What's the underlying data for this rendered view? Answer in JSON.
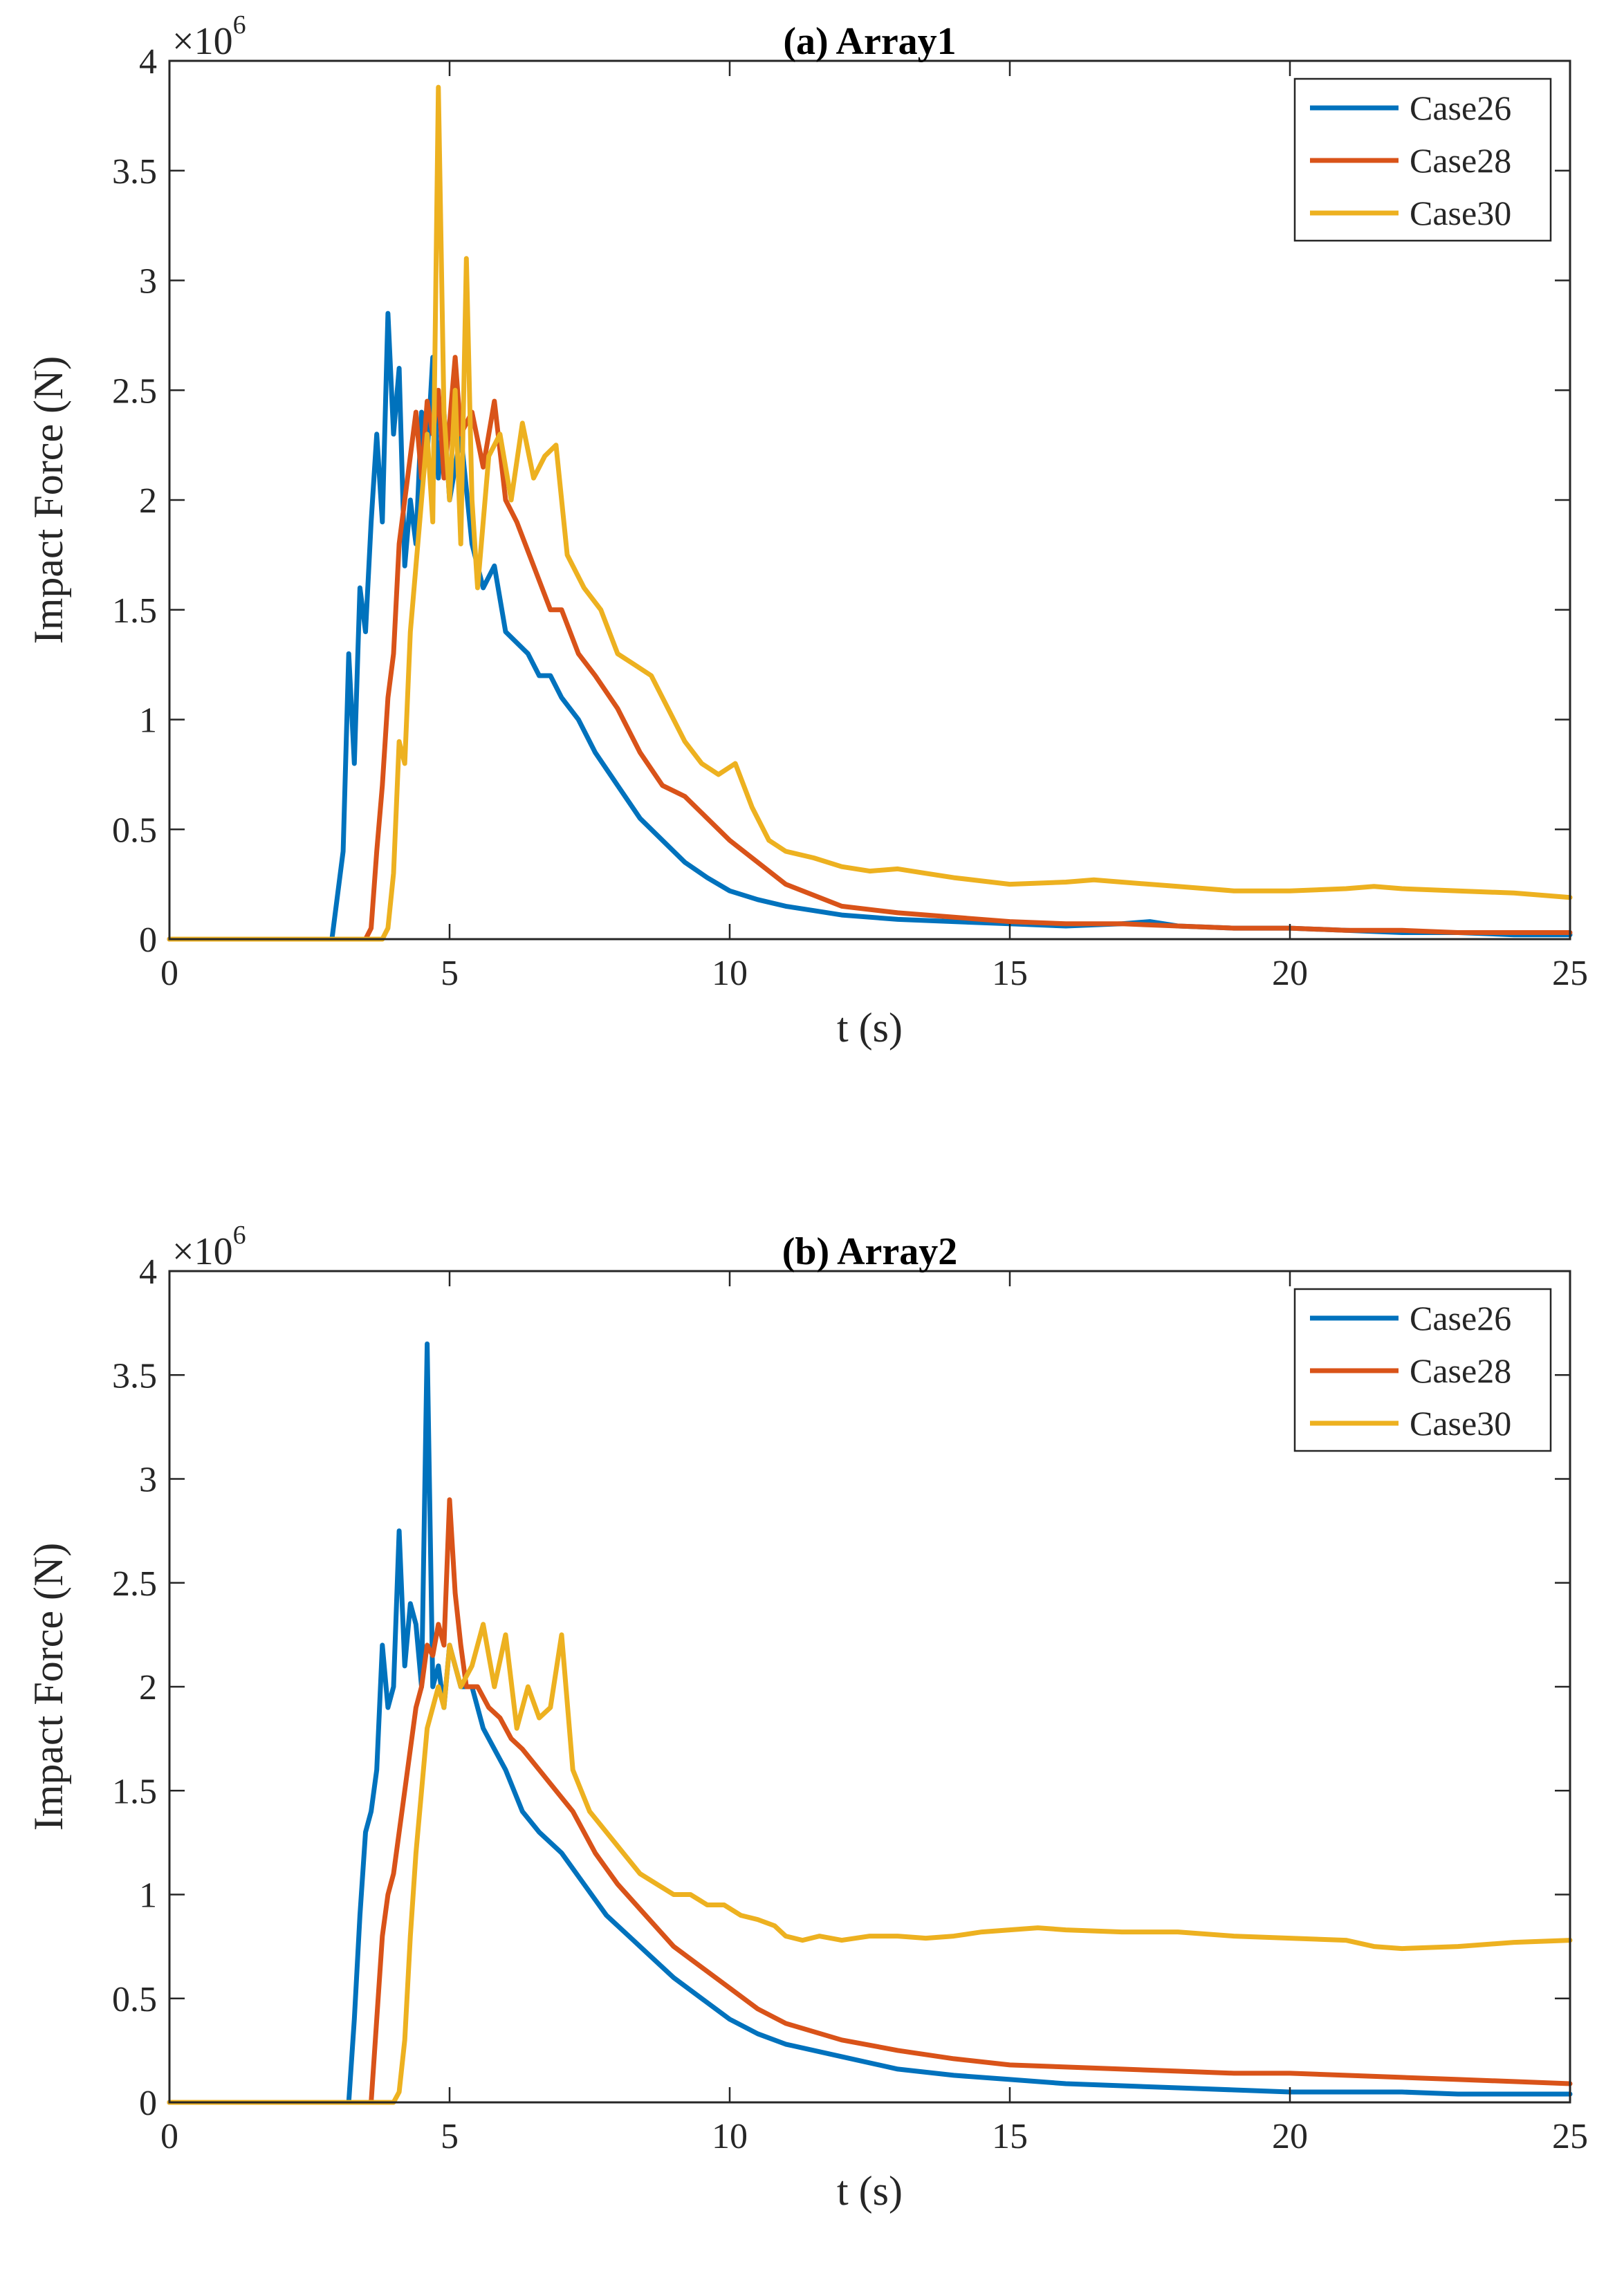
{
  "chart_data": [
    {
      "type": "line",
      "title": "(a) Array1",
      "xlabel": "t (s)",
      "ylabel": "Impact Force (N)",
      "exponent_base": "×10",
      "exponent_power": "6",
      "xlim": [
        0,
        25
      ],
      "ylim": [
        0,
        4
      ],
      "xticks": [
        0,
        5,
        10,
        15,
        20,
        25
      ],
      "yticks": [
        0,
        0.5,
        1,
        1.5,
        2,
        2.5,
        3,
        3.5,
        4
      ],
      "xtick_labels": [
        "0",
        "5",
        "10",
        "15",
        "20",
        "25"
      ],
      "ytick_labels": [
        "0",
        "0.5",
        "1",
        "1.5",
        "2",
        "2.5",
        "3",
        "3.5",
        "4"
      ],
      "grid": false,
      "legend_position": "top-right",
      "series": [
        {
          "name": "Case26",
          "color": "#0072BD",
          "x": [
            0,
            2.9,
            3.0,
            3.1,
            3.2,
            3.3,
            3.4,
            3.5,
            3.6,
            3.7,
            3.8,
            3.9,
            4.0,
            4.1,
            4.2,
            4.3,
            4.4,
            4.5,
            4.6,
            4.7,
            4.8,
            4.9,
            5.0,
            5.2,
            5.4,
            5.6,
            5.8,
            6.0,
            6.2,
            6.4,
            6.6,
            6.8,
            7.0,
            7.3,
            7.6,
            8.0,
            8.4,
            8.8,
            9.2,
            9.6,
            10.0,
            10.5,
            11.0,
            11.5,
            12.0,
            13.0,
            14.0,
            15.0,
            16.0,
            17.0,
            17.5,
            18.0,
            19.0,
            20.0,
            21.0,
            22.0,
            23.0,
            24.0,
            25.0
          ],
          "y": [
            0,
            0,
            0.2,
            0.4,
            1.3,
            0.8,
            1.6,
            1.4,
            1.9,
            2.3,
            1.9,
            2.85,
            2.3,
            2.6,
            1.7,
            2.0,
            1.8,
            2.4,
            2.2,
            2.65,
            2.1,
            2.4,
            2.0,
            2.3,
            1.8,
            1.6,
            1.7,
            1.4,
            1.35,
            1.3,
            1.2,
            1.2,
            1.1,
            1.0,
            0.85,
            0.7,
            0.55,
            0.45,
            0.35,
            0.28,
            0.22,
            0.18,
            0.15,
            0.13,
            0.11,
            0.09,
            0.08,
            0.07,
            0.06,
            0.07,
            0.08,
            0.06,
            0.05,
            0.05,
            0.04,
            0.03,
            0.03,
            0.02,
            0.02
          ]
        },
        {
          "name": "Case28",
          "color": "#D95319",
          "x": [
            0,
            3.5,
            3.6,
            3.7,
            3.8,
            3.9,
            4.0,
            4.1,
            4.2,
            4.3,
            4.4,
            4.5,
            4.6,
            4.7,
            4.8,
            4.9,
            5.0,
            5.1,
            5.2,
            5.4,
            5.6,
            5.8,
            6.0,
            6.2,
            6.5,
            6.8,
            7.0,
            7.3,
            7.6,
            8.0,
            8.4,
            8.8,
            9.2,
            9.6,
            10.0,
            10.5,
            11.0,
            11.5,
            12.0,
            13.0,
            14.0,
            15.0,
            16.0,
            17.0,
            18.0,
            19.0,
            20.0,
            21.0,
            22.0,
            23.0,
            24.0,
            25.0
          ],
          "y": [
            0,
            0,
            0.05,
            0.4,
            0.7,
            1.1,
            1.3,
            1.8,
            2.0,
            2.2,
            2.4,
            2.1,
            2.45,
            2.3,
            2.5,
            2.1,
            2.35,
            2.65,
            2.3,
            2.4,
            2.15,
            2.45,
            2.0,
            1.9,
            1.7,
            1.5,
            1.5,
            1.3,
            1.2,
            1.05,
            0.85,
            0.7,
            0.65,
            0.55,
            0.45,
            0.35,
            0.25,
            0.2,
            0.15,
            0.12,
            0.1,
            0.08,
            0.07,
            0.07,
            0.06,
            0.05,
            0.05,
            0.04,
            0.04,
            0.03,
            0.03,
            0.03
          ]
        },
        {
          "name": "Case30",
          "color": "#EDB120",
          "x": [
            0,
            3.8,
            3.9,
            4.0,
            4.1,
            4.2,
            4.3,
            4.4,
            4.5,
            4.6,
            4.7,
            4.8,
            4.9,
            5.0,
            5.1,
            5.2,
            5.3,
            5.4,
            5.5,
            5.7,
            5.9,
            6.1,
            6.3,
            6.5,
            6.7,
            6.9,
            7.1,
            7.4,
            7.7,
            8.0,
            8.3,
            8.6,
            8.9,
            9.2,
            9.5,
            9.8,
            10.1,
            10.4,
            10.7,
            11.0,
            11.5,
            12.0,
            12.5,
            13.0,
            13.5,
            14.0,
            15.0,
            16.0,
            16.5,
            17.0,
            18.0,
            19.0,
            20.0,
            21.0,
            21.5,
            22.0,
            23.0,
            24.0,
            25.0
          ],
          "y": [
            0,
            0,
            0.05,
            0.3,
            0.9,
            0.8,
            1.4,
            1.7,
            2.0,
            2.3,
            1.9,
            3.88,
            2.4,
            2.0,
            2.5,
            1.8,
            3.1,
            2.0,
            1.6,
            2.2,
            2.3,
            2.0,
            2.35,
            2.1,
            2.2,
            2.25,
            1.75,
            1.6,
            1.5,
            1.3,
            1.25,
            1.2,
            1.05,
            0.9,
            0.8,
            0.75,
            0.8,
            0.6,
            0.45,
            0.4,
            0.37,
            0.33,
            0.31,
            0.32,
            0.3,
            0.28,
            0.25,
            0.26,
            0.27,
            0.26,
            0.24,
            0.22,
            0.22,
            0.23,
            0.24,
            0.23,
            0.22,
            0.21,
            0.19
          ]
        }
      ]
    },
    {
      "type": "line",
      "title": "(b) Array2",
      "xlabel": "t (s)",
      "ylabel": "Impact Force (N)",
      "exponent_base": "×10",
      "exponent_power": "6",
      "xlim": [
        0,
        25
      ],
      "ylim": [
        0,
        4
      ],
      "xticks": [
        0,
        5,
        10,
        15,
        20,
        25
      ],
      "yticks": [
        0,
        0.5,
        1,
        1.5,
        2,
        2.5,
        3,
        3.5,
        4
      ],
      "xtick_labels": [
        "0",
        "5",
        "10",
        "15",
        "20",
        "25"
      ],
      "ytick_labels": [
        "0",
        "0.5",
        "1",
        "1.5",
        "2",
        "2.5",
        "3",
        "3.5",
        "4"
      ],
      "grid": false,
      "legend_position": "top-right",
      "series": [
        {
          "name": "Case26",
          "color": "#0072BD",
          "x": [
            0,
            3.2,
            3.3,
            3.4,
            3.5,
            3.6,
            3.7,
            3.8,
            3.9,
            4.0,
            4.1,
            4.2,
            4.3,
            4.4,
            4.5,
            4.6,
            4.7,
            4.8,
            4.9,
            5.0,
            5.2,
            5.4,
            5.6,
            5.8,
            6.0,
            6.3,
            6.6,
            7.0,
            7.4,
            7.8,
            8.2,
            8.6,
            9.0,
            9.5,
            10.0,
            10.5,
            11.0,
            12.0,
            13.0,
            14.0,
            15.0,
            16.0,
            17.0,
            18.0,
            19.0,
            20.0,
            21.0,
            22.0,
            23.0,
            24.0,
            25.0
          ],
          "y": [
            0,
            0,
            0.4,
            0.9,
            1.3,
            1.4,
            1.6,
            2.2,
            1.9,
            2.0,
            2.75,
            2.1,
            2.4,
            2.3,
            2.0,
            3.65,
            2.0,
            2.1,
            1.9,
            2.2,
            2.0,
            2.0,
            1.8,
            1.7,
            1.6,
            1.4,
            1.3,
            1.2,
            1.05,
            0.9,
            0.8,
            0.7,
            0.6,
            0.5,
            0.4,
            0.33,
            0.28,
            0.22,
            0.16,
            0.13,
            0.11,
            0.09,
            0.08,
            0.07,
            0.06,
            0.05,
            0.05,
            0.05,
            0.04,
            0.04,
            0.04
          ]
        },
        {
          "name": "Case28",
          "color": "#D95319",
          "x": [
            0,
            3.6,
            3.7,
            3.8,
            3.9,
            4.0,
            4.1,
            4.2,
            4.3,
            4.4,
            4.5,
            4.6,
            4.7,
            4.8,
            4.9,
            5.0,
            5.1,
            5.2,
            5.3,
            5.5,
            5.7,
            5.9,
            6.1,
            6.3,
            6.6,
            6.9,
            7.2,
            7.6,
            8.0,
            8.5,
            9.0,
            9.5,
            10.0,
            10.5,
            11.0,
            12.0,
            13.0,
            14.0,
            15.0,
            16.0,
            17.0,
            18.0,
            19.0,
            20.0,
            21.0,
            22.0,
            23.0,
            24.0,
            25.0
          ],
          "y": [
            0,
            0,
            0.4,
            0.8,
            1.0,
            1.1,
            1.3,
            1.5,
            1.7,
            1.9,
            2.0,
            2.2,
            2.15,
            2.3,
            2.2,
            2.9,
            2.45,
            2.2,
            2.0,
            2.0,
            1.9,
            1.85,
            1.75,
            1.7,
            1.6,
            1.5,
            1.4,
            1.2,
            1.05,
            0.9,
            0.75,
            0.65,
            0.55,
            0.45,
            0.38,
            0.3,
            0.25,
            0.21,
            0.18,
            0.17,
            0.16,
            0.15,
            0.14,
            0.14,
            0.13,
            0.12,
            0.11,
            0.1,
            0.09
          ]
        },
        {
          "name": "Case30",
          "color": "#EDB120",
          "x": [
            0,
            4.0,
            4.1,
            4.2,
            4.3,
            4.4,
            4.5,
            4.6,
            4.7,
            4.8,
            4.9,
            5.0,
            5.2,
            5.4,
            5.6,
            5.8,
            6.0,
            6.2,
            6.4,
            6.6,
            6.8,
            7.0,
            7.2,
            7.5,
            7.8,
            8.1,
            8.4,
            8.7,
            9.0,
            9.3,
            9.6,
            9.9,
            10.2,
            10.5,
            10.8,
            11.0,
            11.3,
            11.6,
            12.0,
            12.5,
            13.0,
            13.5,
            14.0,
            14.5,
            15.0,
            15.5,
            16.0,
            17.0,
            18.0,
            19.0,
            20.0,
            21.0,
            21.5,
            22.0,
            23.0,
            24.0,
            25.0
          ],
          "y": [
            0,
            0,
            0.05,
            0.3,
            0.8,
            1.2,
            1.5,
            1.8,
            1.9,
            2.0,
            1.9,
            2.2,
            2.0,
            2.1,
            2.3,
            2.0,
            2.25,
            1.8,
            2.0,
            1.85,
            1.9,
            2.25,
            1.6,
            1.4,
            1.3,
            1.2,
            1.1,
            1.05,
            1.0,
            1.0,
            0.95,
            0.95,
            0.9,
            0.88,
            0.85,
            0.8,
            0.78,
            0.8,
            0.78,
            0.8,
            0.8,
            0.79,
            0.8,
            0.82,
            0.83,
            0.84,
            0.83,
            0.82,
            0.82,
            0.8,
            0.79,
            0.78,
            0.75,
            0.74,
            0.75,
            0.77,
            0.78
          ]
        }
      ]
    }
  ]
}
